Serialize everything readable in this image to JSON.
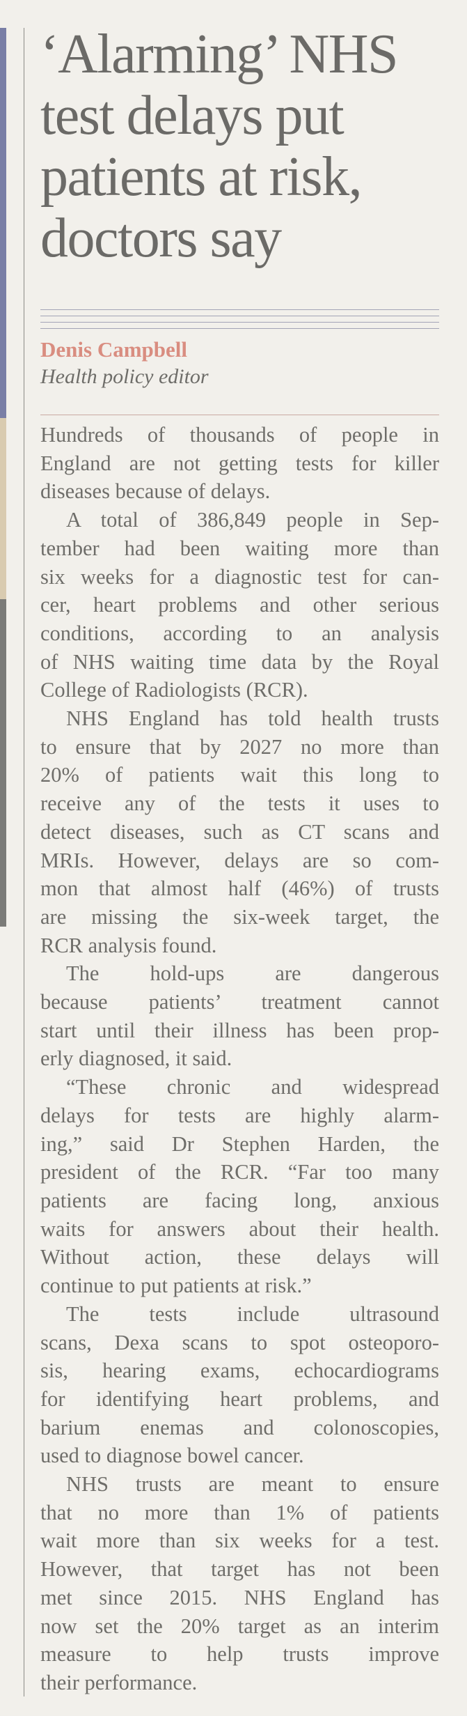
{
  "headline": [
    "‘Alarming’ NHS",
    "test delays put",
    "patients at risk,",
    "doctors say"
  ],
  "byline": {
    "author": "Denis Campbell",
    "role": "Health policy editor"
  },
  "colors": {
    "author": "#d98d80",
    "text": "#6e6d69",
    "paper": "#f2f0eb"
  },
  "paragraphs": [
    {
      "lines": [
        "Hundreds of thousands of people in",
        "England are not getting tests for killer",
        "diseases because of delays."
      ]
    },
    {
      "lines": [
        "A total of 386,849 people in Sep-",
        "tember had been waiting more than",
        "six weeks for a diagnostic test for can-",
        "cer, heart problems and other serious",
        "conditions, according to an analysis",
        "of NHS waiting time data by the Royal",
        "College of Radiologists (RCR)."
      ]
    },
    {
      "lines": [
        "NHS England has told health trusts",
        "to ensure that by 2027 no more than",
        "20% of patients wait this long to",
        "receive any of the tests it uses to",
        "detect diseases, such as CT scans and",
        "MRIs. However, delays are so com-",
        "mon that almost half (46%) of trusts",
        "are missing the six-week target, the",
        "RCR analysis found."
      ]
    },
    {
      "lines": [
        "The hold-ups are dangerous",
        "because patients’ treatment cannot",
        "start until their illness has been prop-",
        "erly diagnosed, it said."
      ]
    },
    {
      "lines": [
        "“These chronic and widespread",
        "delays for tests are highly alarm-",
        "ing,” said Dr Stephen Harden, the",
        "president of the RCR. “Far too many",
        "patients are facing long, anxious",
        "waits for answers about their health.",
        "Without action, these delays will",
        "continue to put patients at risk.”"
      ]
    },
    {
      "lines": [
        "The tests include ultrasound",
        "scans, Dexa scans to spot osteoporo-",
        "sis, hearing exams, echocardiograms",
        "for identifying heart problems, and",
        "barium enemas and colonoscopies,",
        "used to diagnose bowel cancer."
      ]
    },
    {
      "lines": [
        "NHS trusts are meant to ensure",
        "that no more than 1% of patients",
        "wait more than six weeks for a test.",
        "However, that target has not been",
        "met since 2015. NHS England has",
        "now set the 20% target as an interim",
        "measure to help trusts improve",
        "their performance."
      ]
    }
  ]
}
